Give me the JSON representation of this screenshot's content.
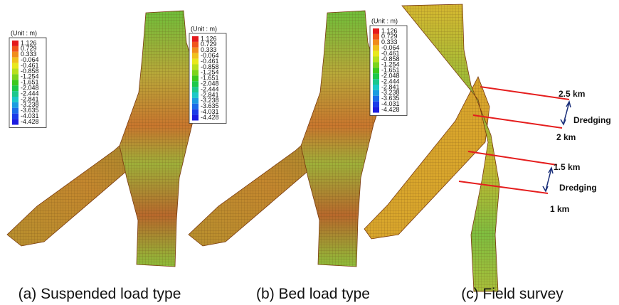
{
  "panels": [
    {
      "legend": {
        "unit": "(Unit : m)",
        "labels": [
          "1.126",
          "0.729",
          "0.333",
          "-0.064",
          "-0.461",
          "-0.858",
          "-1.254",
          "-1.651",
          "-2.048",
          "-2.444",
          "-2.841",
          "-3.238",
          "-3.635",
          "-4.031",
          "-4.428"
        ]
      },
      "caption": "(a) Suspended load type"
    },
    {
      "legend": {
        "unit": "(Unit : m)",
        "labels": [
          "1.126",
          "0.729",
          "0.333",
          "-0.064",
          "-0.461",
          "-0.858",
          "-1.254",
          "-1.651",
          "-2.048",
          "-2.444",
          "-2.841",
          "-3.238",
          "-3.635",
          "-4.031",
          "-4.428"
        ]
      },
      "caption": "(b) Bed load type"
    },
    {
      "legend": {
        "unit": "(Unit : m)",
        "labels": [
          "1.126",
          "0.729",
          "0.333",
          "-0.064",
          "-0.461",
          "-0.858",
          "-1.254",
          "-1.651",
          "-2.048",
          "-2.444",
          "-2.841",
          "-3.238",
          "-3.635",
          "-4.031",
          "-4.428"
        ]
      },
      "caption": "(c) Field survey",
      "annotations": [
        "2.5 km",
        "Dredging",
        "2 km",
        "1.5 km",
        "Dredging",
        "1 km"
      ]
    }
  ]
}
